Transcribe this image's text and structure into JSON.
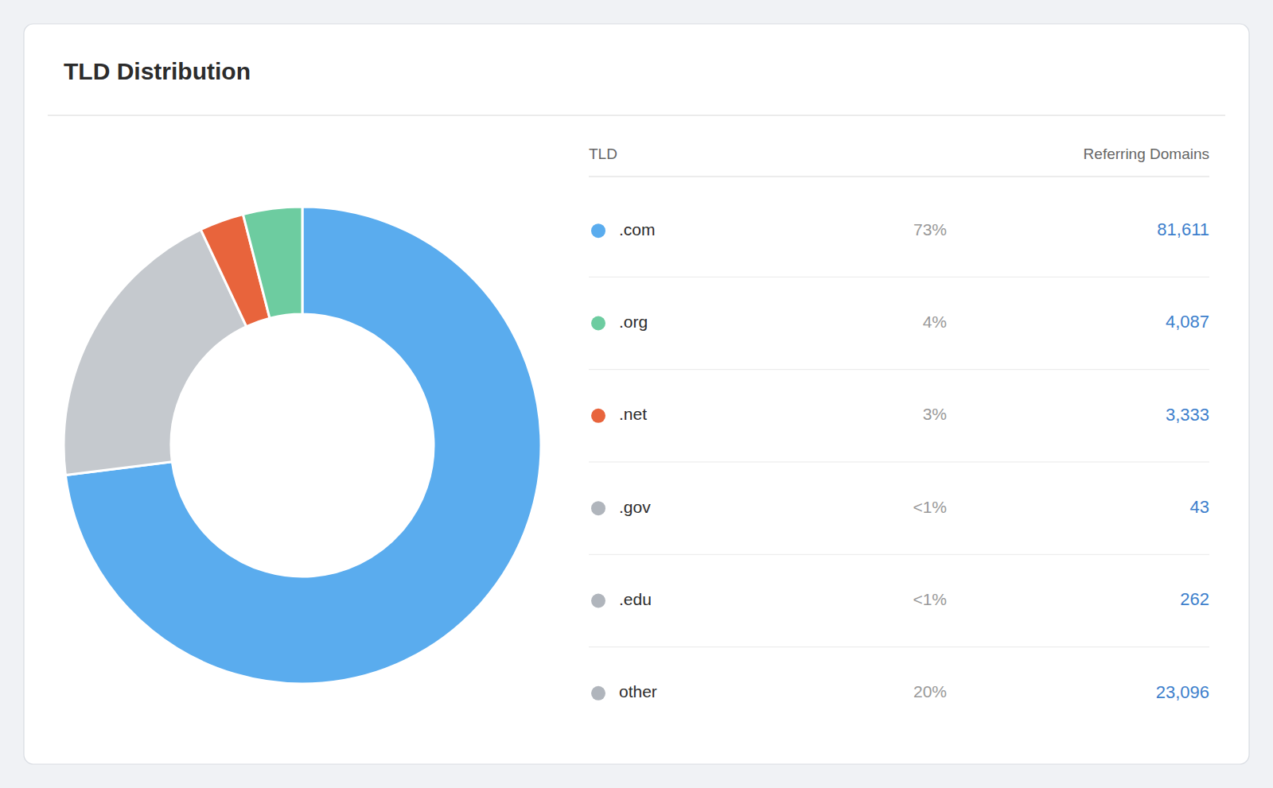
{
  "chart_data": [
    {
      "type": "donut",
      "title": "TLD Distribution",
      "values": [
        73,
        20,
        3,
        4
      ],
      "colors": [
        "#5aacee",
        "#c5c9ce",
        "#e8643c",
        "#6dcca0"
      ]
    },
    {
      "type": "table",
      "columns": [
        "TLD",
        "Referring Domains"
      ],
      "categories": [
        ".com",
        ".org",
        ".net",
        ".gov",
        ".edu",
        "other"
      ],
      "colors": [
        "#5aacee",
        "#6dcca0",
        "#e8643c",
        "#b0b5bc",
        "#b0b5bc",
        "#b0b5bc"
      ],
      "series": [
        {
          "values": [
            73,
            4,
            3,
            null,
            null,
            20
          ],
          "value_labels": [
            "73%",
            "4%",
            "3%",
            "<1%",
            "<1%",
            "20%"
          ]
        },
        {
          "name": "Referring Domains",
          "color": "#3d7fcc",
          "values": [
            81611,
            4087,
            3333,
            43,
            262,
            23096
          ],
          "value_labels": [
            "81,611",
            "4,087",
            "3,333",
            "43",
            "262",
            "23,096"
          ]
        }
      ]
    }
  ]
}
